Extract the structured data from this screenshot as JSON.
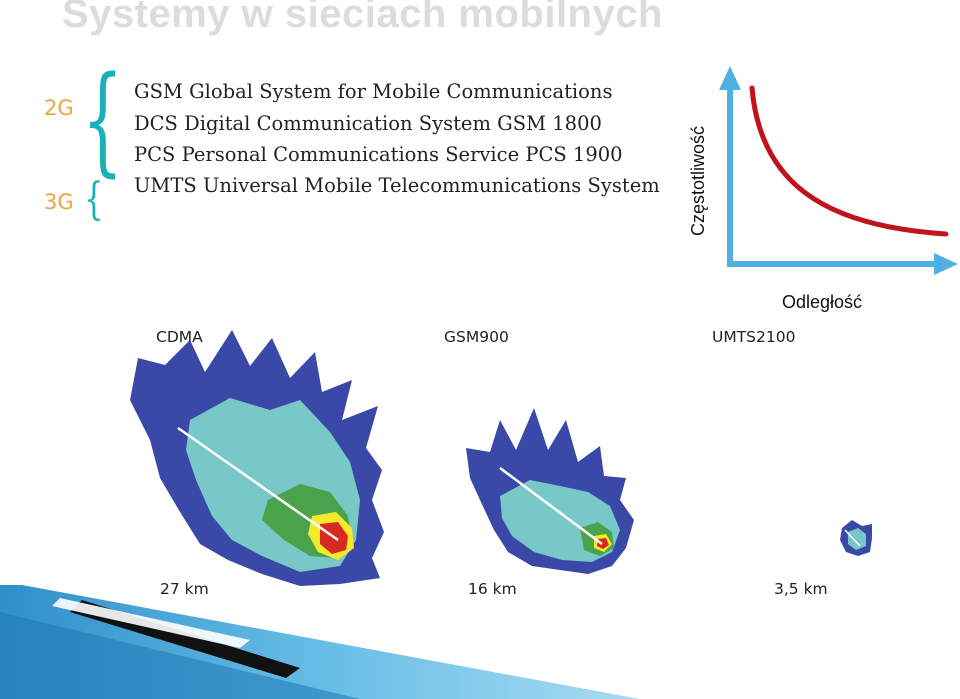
{
  "title": "Systemy w sieciach mobilnych",
  "generations": [
    {
      "label": "2G",
      "systems": [
        "GSM Global System for Mobile Communications",
        "DCS Digital Communication System GSM 1800",
        "PCS Personal Communications Service PCS 1900"
      ]
    },
    {
      "label": "3G",
      "systems": [
        "UMTS Universal Mobile Telecommunications System"
      ]
    }
  ],
  "graph": {
    "ylabel": "Częstotliwość",
    "xlabel": "Odległość"
  },
  "coverage": [
    {
      "name": "CDMA",
      "range": "27 km"
    },
    {
      "name": "GSM900",
      "range": "16 km"
    },
    {
      "name": "UMTS2100",
      "range": "3,5 km"
    }
  ],
  "colors": {
    "title": "#dcdcdc",
    "generation": "#f0a346",
    "brace": "#1bb0b8",
    "axis": "#4fb0e2",
    "curve": "#c0141c",
    "coverage_outer": "#3a48a8",
    "coverage_mid": "#78c8c8",
    "coverage_inner": "#4aa24a",
    "coverage_ring": "#f2ea2a",
    "coverage_core": "#d82a20"
  }
}
